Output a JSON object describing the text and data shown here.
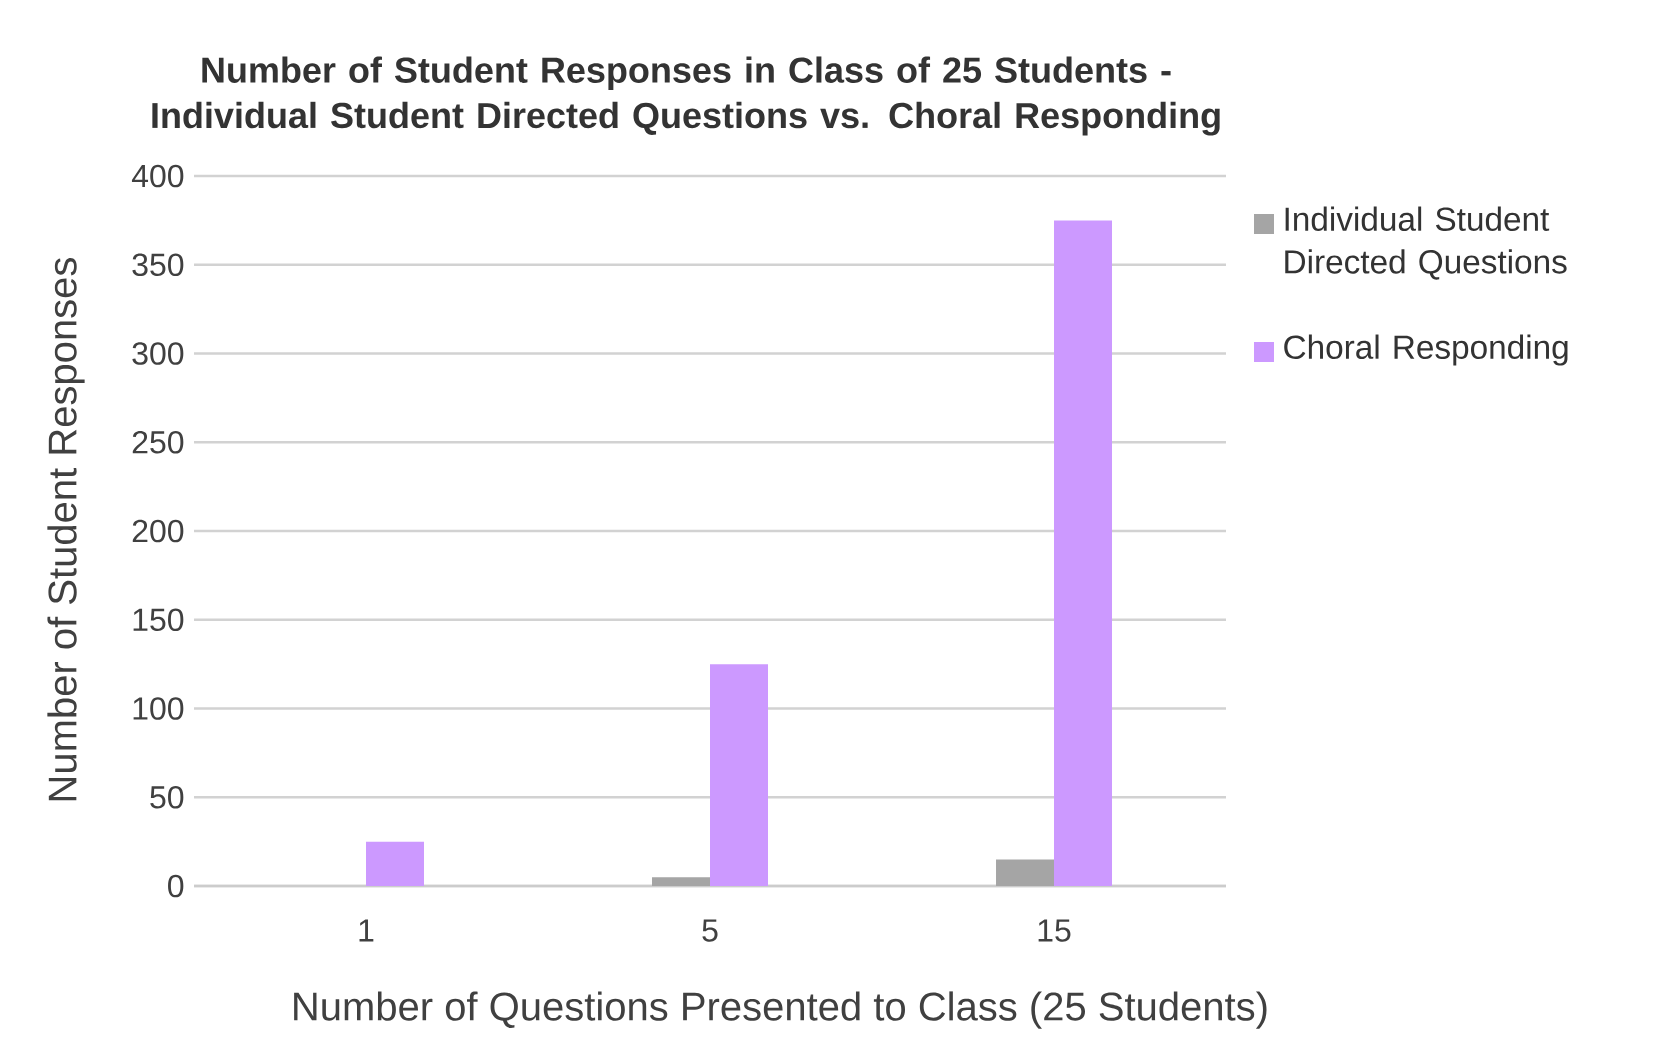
{
  "chart_data": {
    "type": "bar",
    "title": "Number of Student Responses in Class of 25 Students - Individual Student Directed Questions vs. Choral Responding",
    "xlabel": "Number of Questions Presented to Class (25 Students)",
    "ylabel": "Number of Student Responses",
    "categories": [
      "1",
      "5",
      "15"
    ],
    "series": [
      {
        "name": "Individual Student Directed Questions",
        "color": "#a5a5a5",
        "values": [
          null,
          5,
          15
        ]
      },
      {
        "name": "Choral Responding",
        "color": "#cc99ff",
        "values": [
          25,
          125,
          375
        ]
      }
    ],
    "ylim": [
      0,
      400
    ],
    "yticks": [
      0,
      50,
      100,
      150,
      200,
      250,
      300,
      350,
      400
    ],
    "grid": "y",
    "legend": "right"
  }
}
